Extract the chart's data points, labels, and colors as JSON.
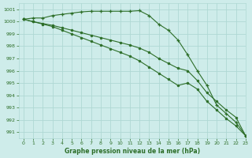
{
  "title": "Graphe pression niveau de la mer (hPa)",
  "background_color": "#ceecea",
  "grid_color": "#afd8d4",
  "line_color_1": "#2d6e28",
  "line_color_2": "#2d6e28",
  "line_color_3": "#2d6e28",
  "xlim": [
    -0.5,
    23
  ],
  "ylim": [
    990.5,
    1001.5
  ],
  "yticks": [
    991,
    992,
    993,
    994,
    995,
    996,
    997,
    998,
    999,
    1000,
    1001
  ],
  "xticks": [
    0,
    1,
    2,
    3,
    4,
    5,
    6,
    7,
    8,
    9,
    10,
    11,
    12,
    13,
    14,
    15,
    16,
    17,
    18,
    19,
    20,
    21,
    22,
    23
  ],
  "series1": [
    1000.2,
    1000.3,
    1000.3,
    1000.5,
    1000.6,
    1000.7,
    1000.8,
    1000.85,
    1000.85,
    1000.85,
    1000.85,
    1000.85,
    1000.9,
    1000.5,
    999.8,
    999.3,
    998.5,
    997.3,
    996.0,
    994.8,
    993.2,
    992.5,
    991.8,
    990.7
  ],
  "series2": [
    1000.2,
    1000.0,
    999.8,
    999.6,
    999.3,
    999.0,
    998.7,
    998.4,
    998.1,
    997.8,
    997.5,
    997.2,
    996.8,
    996.3,
    995.8,
    995.3,
    994.8,
    995.0,
    994.5,
    993.5,
    992.8,
    992.1,
    991.5,
    990.7
  ],
  "series3": [
    1000.2,
    1000.0,
    999.85,
    999.7,
    999.5,
    999.3,
    999.1,
    998.9,
    998.7,
    998.5,
    998.3,
    998.1,
    997.85,
    997.5,
    997.0,
    996.6,
    996.2,
    996.0,
    995.2,
    994.2,
    993.5,
    992.8,
    992.2,
    990.7
  ]
}
